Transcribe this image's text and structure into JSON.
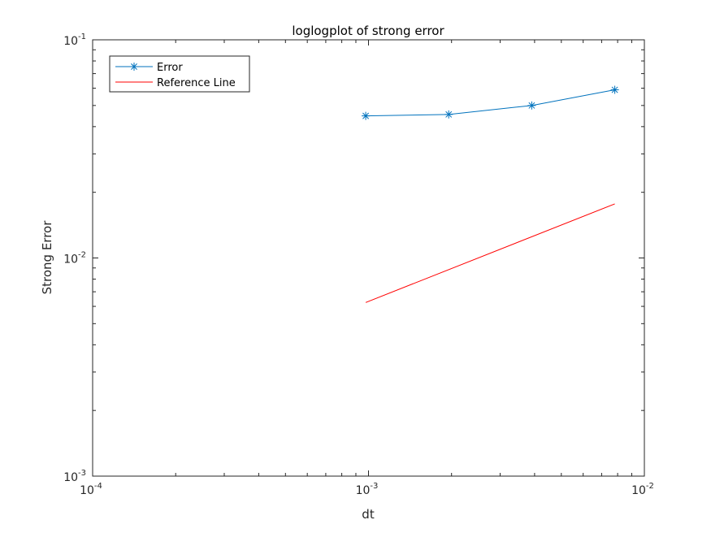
{
  "chart_data": {
    "type": "line",
    "title": "loglogplot of strong error",
    "xlabel": "dt",
    "ylabel": "Strong Error",
    "xscale": "log",
    "yscale": "log",
    "xlim": [
      0.0001,
      0.01
    ],
    "ylim": [
      0.001,
      0.1
    ],
    "xticks": [
      {
        "base": "10",
        "exp": "-4",
        "value": 0.0001
      },
      {
        "base": "10",
        "exp": "-3",
        "value": 0.001
      },
      {
        "base": "10",
        "exp": "-2",
        "value": 0.01
      }
    ],
    "yticks": [
      {
        "base": "10",
        "exp": "-3",
        "value": 0.001
      },
      {
        "base": "10",
        "exp": "-2",
        "value": 0.01
      },
      {
        "base": "10",
        "exp": "-1",
        "value": 0.1
      }
    ],
    "grid": false,
    "legend_position": "top-left",
    "series": [
      {
        "name": "Error",
        "color": "#0072BD",
        "marker": "asterisk",
        "x": [
          0.000977,
          0.001953,
          0.003906,
          0.007813
        ],
        "y": [
          0.0448,
          0.0455,
          0.05,
          0.059
        ]
      },
      {
        "name": "Reference Line",
        "color": "#FF0000",
        "marker": "none",
        "x": [
          0.000977,
          0.007813
        ],
        "y": [
          0.00625,
          0.0177
        ]
      }
    ]
  }
}
